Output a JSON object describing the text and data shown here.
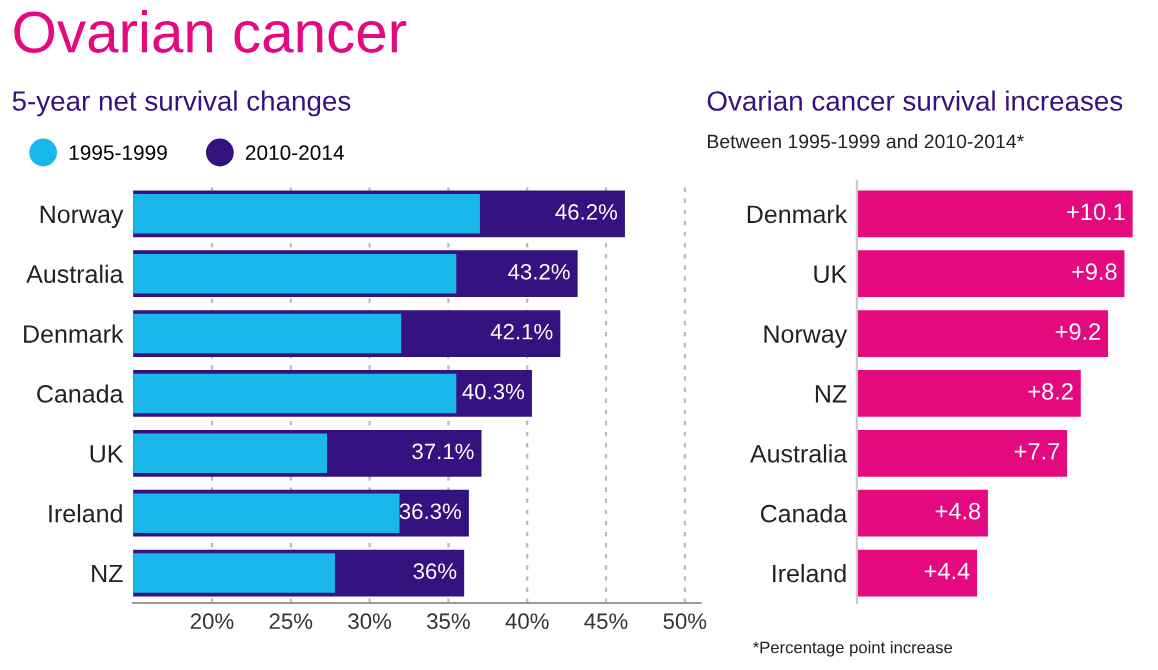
{
  "chart_data": [
    {
      "type": "bar",
      "title": "Ovarian cancer",
      "subtitle": "5-year net survival changes",
      "orientation": "horizontal",
      "categories": [
        "Norway",
        "Australia",
        "Denmark",
        "Canada",
        "UK",
        "Ireland",
        "NZ"
      ],
      "series": [
        {
          "name": "2010-2014",
          "color": "#35127f",
          "values": [
            46.2,
            43.2,
            42.1,
            40.3,
            37.1,
            36.3,
            36
          ],
          "value_labels": [
            "46.2%",
            "43.2%",
            "42.1%",
            "40.3%",
            "37.1%",
            "36.3%",
            "36%"
          ]
        },
        {
          "name": "1995-1999",
          "color": "#1ab7ea",
          "values": [
            37.0,
            35.5,
            32.0,
            35.5,
            27.3,
            31.9,
            27.8
          ]
        }
      ],
      "xlim": [
        15,
        51
      ],
      "xticks": [
        {
          "value": 20,
          "label": "20%"
        },
        {
          "value": 25,
          "label": "25%"
        },
        {
          "value": 30,
          "label": "30%"
        },
        {
          "value": 35,
          "label": "35%"
        },
        {
          "value": 40,
          "label": "40%"
        },
        {
          "value": 45,
          "label": "45%"
        },
        {
          "value": 50,
          "label": "50%"
        }
      ],
      "grid": "x",
      "legend": "top left"
    },
    {
      "type": "bar",
      "title": "Ovarian cancer survival increases",
      "subtitle": "Between 1995-1999 and 2010-2014*",
      "orientation": "horizontal",
      "categories": [
        "Denmark",
        "UK",
        "Norway",
        "NZ",
        "Australia",
        "Canada",
        "Ireland"
      ],
      "values": [
        10.1,
        9.8,
        9.2,
        8.2,
        7.7,
        4.8,
        4.4
      ],
      "value_labels": [
        "+10.1",
        "+9.8",
        "+9.2",
        "+8.2",
        "+7.7",
        "+4.8",
        "+4.4"
      ],
      "color": "#e5097f",
      "tick_labels": "y",
      "annotations": [
        "*Percentage point increase"
      ]
    }
  ]
}
